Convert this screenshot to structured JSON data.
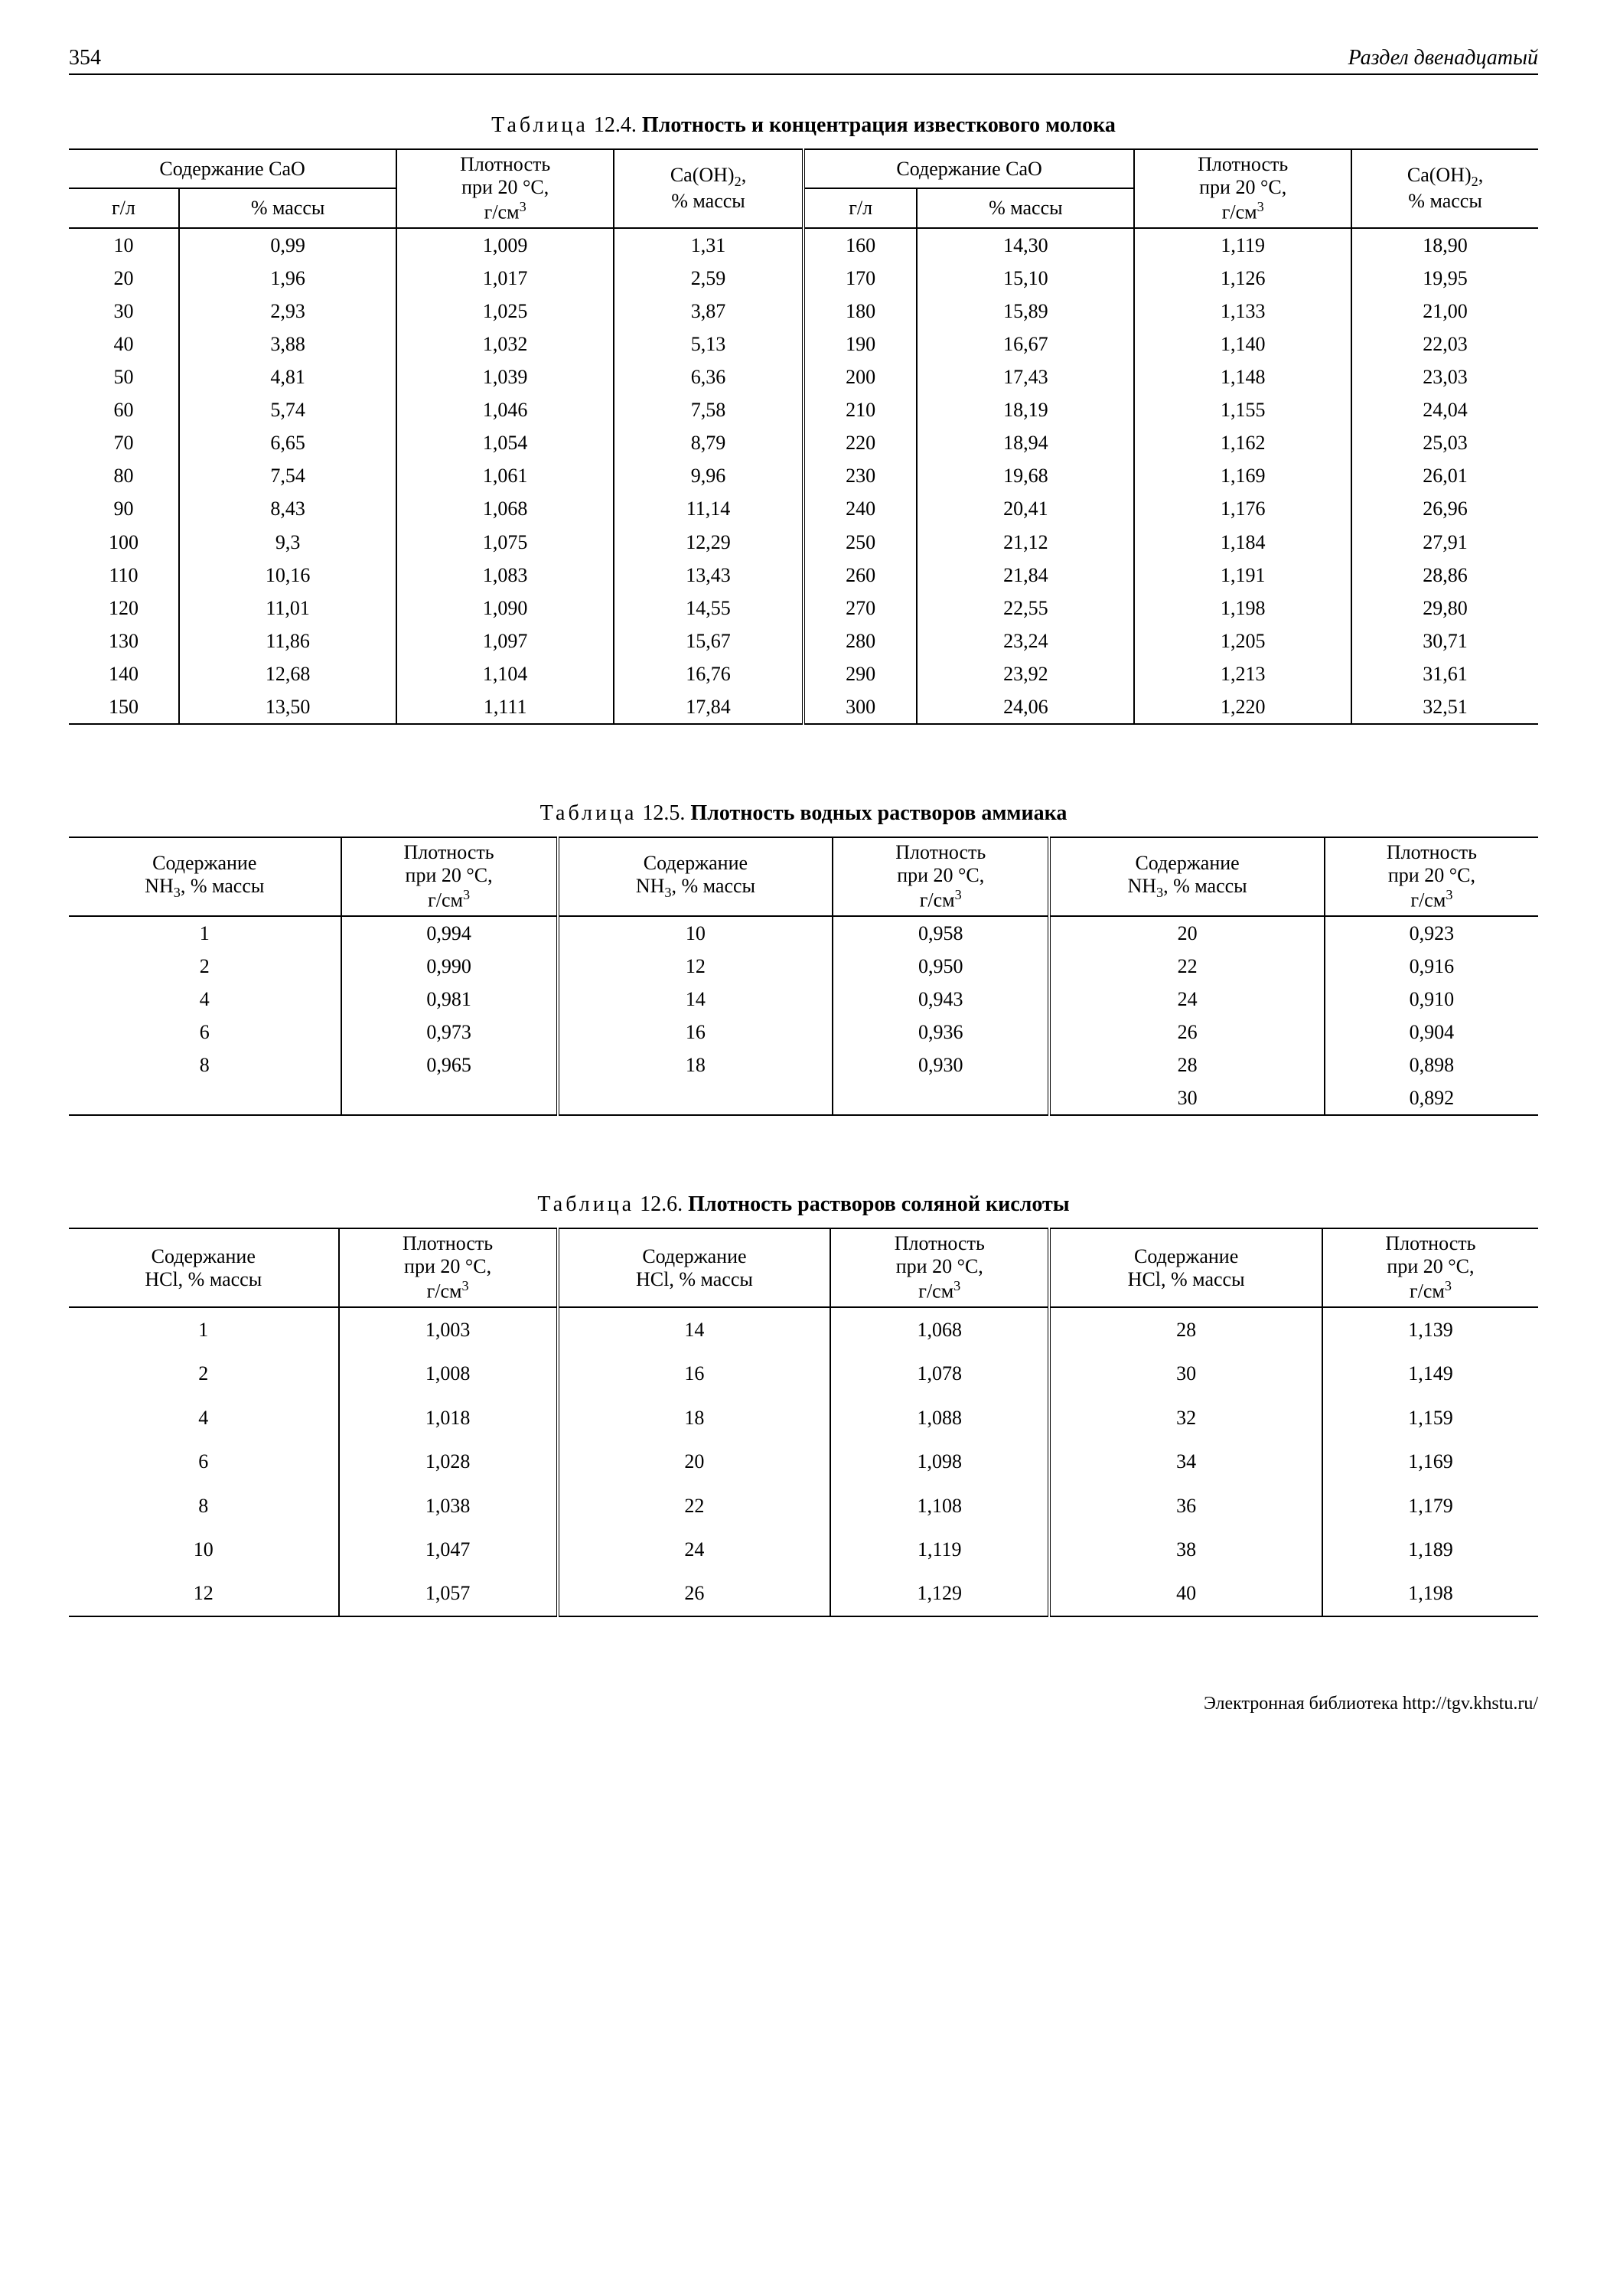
{
  "page": {
    "number": "354",
    "section": "Раздел двенадцатый"
  },
  "footer": "Электронная библиотека http://tgv.khstu.ru/",
  "table124": {
    "caption_prefix": "Таблица",
    "caption_number": "12.4.",
    "caption_title": "Плотность и концентрация известкового молока",
    "headers": {
      "cao": "Содержание CaO",
      "density_html": "Плотность<br>при 20 °C,<br>г/см<sup>3</sup>",
      "caoh2_html": "Ca(OH)<sub>2</sub>,<br>% массы",
      "gl": "г/л",
      "pct": "% массы"
    },
    "rows": [
      [
        "10",
        "0,99",
        "1,009",
        "1,31",
        "160",
        "14,30",
        "1,119",
        "18,90"
      ],
      [
        "20",
        "1,96",
        "1,017",
        "2,59",
        "170",
        "15,10",
        "1,126",
        "19,95"
      ],
      [
        "30",
        "2,93",
        "1,025",
        "3,87",
        "180",
        "15,89",
        "1,133",
        "21,00"
      ],
      [
        "40",
        "3,88",
        "1,032",
        "5,13",
        "190",
        "16,67",
        "1,140",
        "22,03"
      ],
      [
        "50",
        "4,81",
        "1,039",
        "6,36",
        "200",
        "17,43",
        "1,148",
        "23,03"
      ],
      [
        "60",
        "5,74",
        "1,046",
        "7,58",
        "210",
        "18,19",
        "1,155",
        "24,04"
      ],
      [
        "70",
        "6,65",
        "1,054",
        "8,79",
        "220",
        "18,94",
        "1,162",
        "25,03"
      ],
      [
        "80",
        "7,54",
        "1,061",
        "9,96",
        "230",
        "19,68",
        "1,169",
        "26,01"
      ],
      [
        "90",
        "8,43",
        "1,068",
        "11,14",
        "240",
        "20,41",
        "1,176",
        "26,96"
      ],
      [
        "100",
        "9,3",
        "1,075",
        "12,29",
        "250",
        "21,12",
        "1,184",
        "27,91"
      ],
      [
        "110",
        "10,16",
        "1,083",
        "13,43",
        "260",
        "21,84",
        "1,191",
        "28,86"
      ],
      [
        "120",
        "11,01",
        "1,090",
        "14,55",
        "270",
        "22,55",
        "1,198",
        "29,80"
      ],
      [
        "130",
        "11,86",
        "1,097",
        "15,67",
        "280",
        "23,24",
        "1,205",
        "30,71"
      ],
      [
        "140",
        "12,68",
        "1,104",
        "16,76",
        "290",
        "23,92",
        "1,213",
        "31,61"
      ],
      [
        "150",
        "13,50",
        "1,111",
        "17,84",
        "300",
        "24,06",
        "1,220",
        "32,51"
      ]
    ]
  },
  "table125": {
    "caption_prefix": "Таблица",
    "caption_number": "12.5.",
    "caption_title": "Плотность водных растворов аммиака",
    "headers": {
      "content_html": "Содержание<br>NH<sub>3</sub>, % массы",
      "density_html": "Плотность<br>при 20 °C,<br>г/см<sup>3</sup>"
    },
    "rows": [
      [
        "1",
        "0,994",
        "10",
        "0,958",
        "20",
        "0,923"
      ],
      [
        "2",
        "0,990",
        "12",
        "0,950",
        "22",
        "0,916"
      ],
      [
        "4",
        "0,981",
        "14",
        "0,943",
        "24",
        "0,910"
      ],
      [
        "6",
        "0,973",
        "16",
        "0,936",
        "26",
        "0,904"
      ],
      [
        "8",
        "0,965",
        "18",
        "0,930",
        "28",
        "0,898"
      ],
      [
        "",
        "",
        "",
        "",
        "30",
        "0,892"
      ]
    ]
  },
  "table126": {
    "caption_prefix": "Таблица",
    "caption_number": "12.6.",
    "caption_title": "Плотность растворов соляной кислоты",
    "headers": {
      "content_html": "Содержание<br>HCl, % массы",
      "density_html": "Плотность<br>при 20 °C,<br>г/см<sup>3</sup>"
    },
    "rows": [
      [
        "1",
        "1,003",
        "14",
        "1,068",
        "28",
        "1,139"
      ],
      [
        "2",
        "1,008",
        "16",
        "1,078",
        "30",
        "1,149"
      ],
      [
        "4",
        "1,018",
        "18",
        "1,088",
        "32",
        "1,159"
      ],
      [
        "6",
        "1,028",
        "20",
        "1,098",
        "34",
        "1,169"
      ],
      [
        "8",
        "1,038",
        "22",
        "1,108",
        "36",
        "1,179"
      ],
      [
        "10",
        "1,047",
        "24",
        "1,119",
        "38",
        "1,189"
      ],
      [
        "12",
        "1,057",
        "26",
        "1,129",
        "40",
        "1,198"
      ]
    ]
  }
}
